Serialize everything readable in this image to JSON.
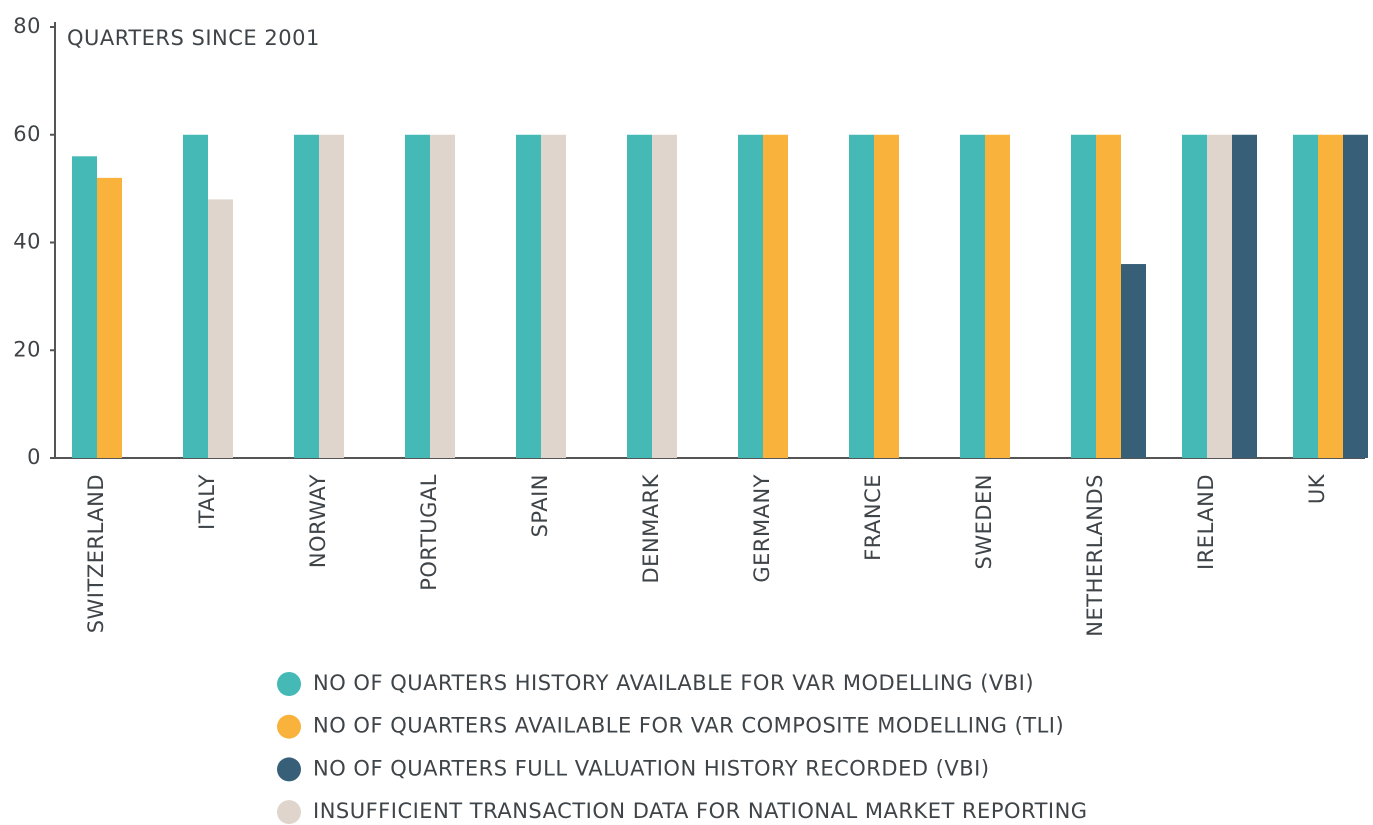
{
  "chart_data": {
    "type": "bar",
    "y_axis_label": "QUARTERS SINCE 2001",
    "categories": [
      "SWITZERLAND",
      "ITALY",
      "NORWAY",
      "PORTUGAL",
      "SPAIN",
      "DENMARK",
      "GERMANY",
      "FRANCE",
      "SWEDEN",
      "NETHERLANDS",
      "IRELAND",
      "UK"
    ],
    "series": [
      {
        "name": "NO OF QUARTERS HISTORY AVAILABLE FOR VAR MODELLING (VBI)",
        "color": "#45b9b5",
        "values": [
          56,
          60,
          60,
          60,
          60,
          60,
          60,
          60,
          60,
          60,
          60,
          60
        ]
      },
      {
        "name": "NO OF QUARTERS AVAILABLE FOR VAR COMPOSITE MODELLING (TLI)",
        "color": "#f9b33d",
        "values": [
          52,
          null,
          null,
          null,
          null,
          null,
          60,
          60,
          60,
          60,
          null,
          60
        ]
      },
      {
        "name": "NO OF QUARTERS FULL VALUATION HISTORY RECORDED (VBI)",
        "color": "#375f78",
        "values": [
          null,
          null,
          null,
          null,
          null,
          null,
          null,
          null,
          null,
          36,
          60,
          60
        ]
      },
      {
        "name": "INSUFFICIENT TRANSACTION DATA FOR NATIONAL MARKET REPORTING",
        "color": "#dfd5cc",
        "values": [
          null,
          48,
          60,
          60,
          60,
          60,
          null,
          null,
          null,
          null,
          60,
          null
        ]
      }
    ],
    "ylim": [
      0,
      80
    ],
    "yticks": [
      0,
      20,
      40,
      60,
      80
    ],
    "grid": false
  }
}
